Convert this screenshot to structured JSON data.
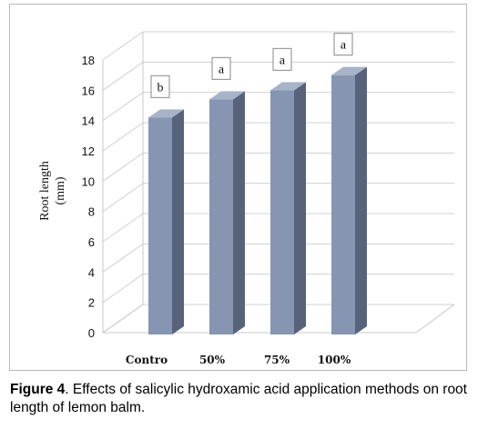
{
  "chart_data": {
    "type": "bar",
    "style": "3d-column",
    "categories": [
      "Contro",
      "50%",
      "75%",
      "100%"
    ],
    "values": [
      14.2,
      15.4,
      16.0,
      17.0
    ],
    "significance_labels": [
      "b",
      "a",
      "a",
      "a"
    ],
    "title": "",
    "xlabel": "",
    "ylabel_lines": [
      "Root length",
      "(mm)"
    ],
    "ylim": [
      0,
      18
    ],
    "yticks": [
      0,
      2,
      4,
      6,
      8,
      10,
      12,
      14,
      16,
      18
    ],
    "grid": true,
    "legend": "none",
    "colors": {
      "bar_front": "#8696b2",
      "bar_side": "#56637a",
      "bar_top": "#a7b3c9",
      "grid": "#d0d0d0"
    }
  },
  "caption": {
    "label": "Figure 4",
    "text": ". Effects of salicylic hydroxamic acid application methods on root length of lemon balm."
  }
}
